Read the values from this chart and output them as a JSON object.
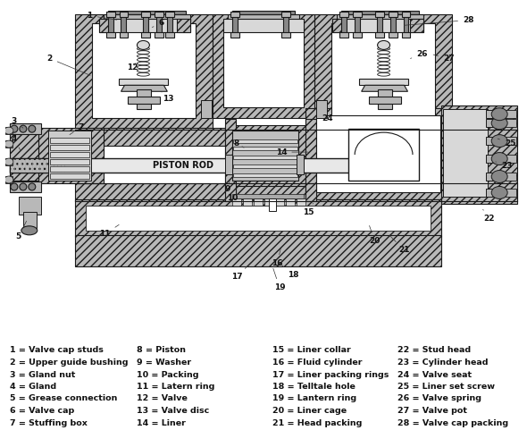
{
  "background_color": "#ffffff",
  "legend_columns": [
    [
      "1 = Valve cap studs",
      "2 = Upper guide bushing",
      "3 = Gland nut",
      "4 = Gland",
      "5 = Grease connection",
      "6 = Valve cap",
      "7 = Stuffing box"
    ],
    [
      "8 = Piston",
      "9 = Washer",
      "10 = Packing",
      "11 = Latern ring",
      "12 = Valve",
      "13 = Valve disc",
      "14 = Liner"
    ],
    [
      "15 = Liner collar",
      "16 = Fluid cylinder",
      "17 = Liner packing rings",
      "18 = Telltale hole",
      "19 = Lantern ring",
      "20 = Liner cage",
      "21 = Head packing"
    ],
    [
      "22 = Stud head",
      "23 = Cylinder head",
      "24 = Valve seat",
      "25 = Liner set screw",
      "26 = Valve spring",
      "27 = Valve pot",
      "28 = Valve cap packing"
    ]
  ],
  "fig_width": 5.9,
  "fig_height": 5.0,
  "dpi": 100
}
